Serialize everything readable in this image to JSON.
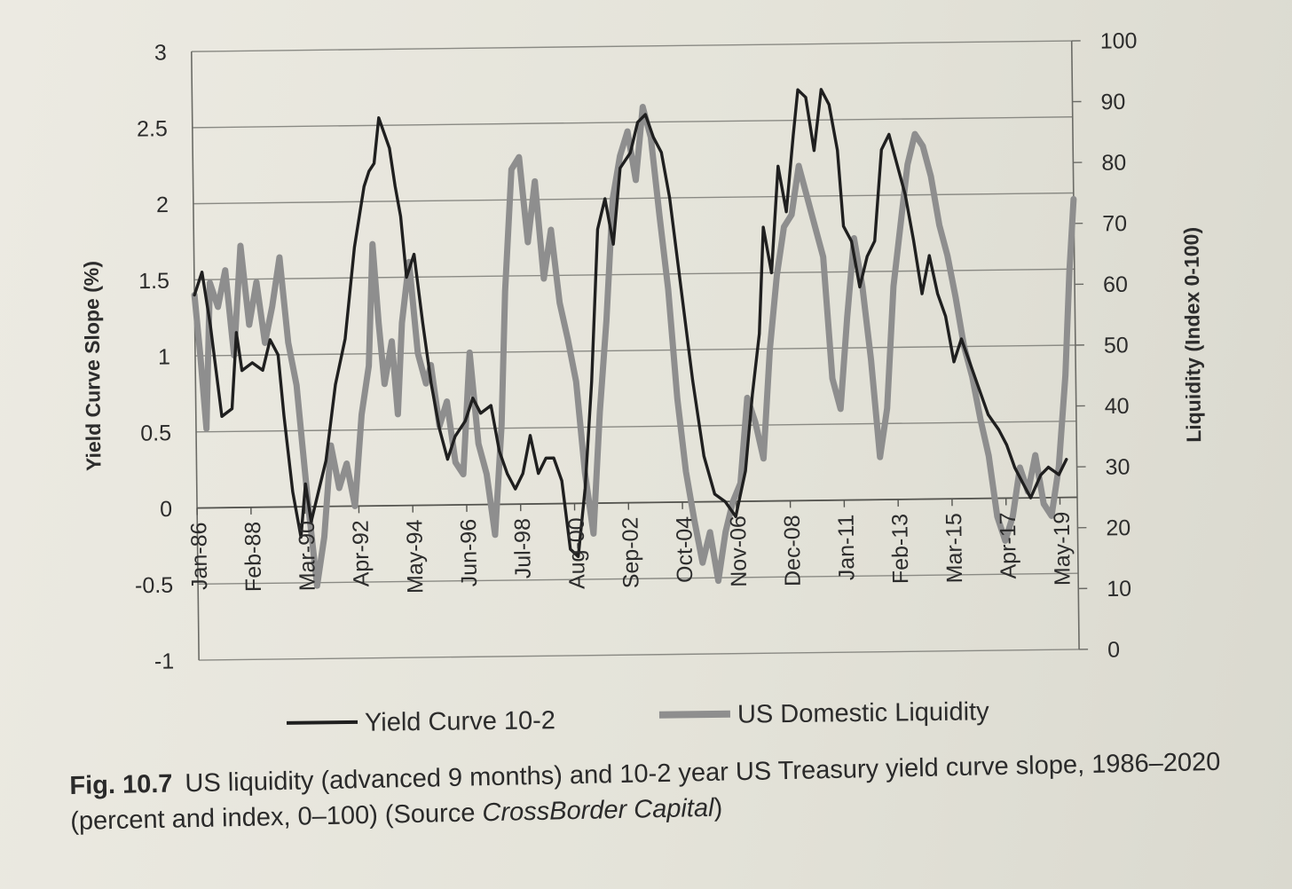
{
  "chart_data": {
    "type": "line",
    "y_left": {
      "label": "Yield Curve Slope (%)",
      "range": [
        -1,
        3
      ],
      "ticks": [
        "3",
        "2.5",
        "2",
        "1.5",
        "1",
        "0.5",
        "0",
        "-0.5",
        "-1"
      ]
    },
    "y_right": {
      "label": "Liquidity (Index 0-100)",
      "range": [
        0,
        100
      ],
      "ticks": [
        "100",
        "90",
        "80",
        "70",
        "60",
        "50",
        "40",
        "30",
        "20",
        "10",
        "0"
      ]
    },
    "x_ticks": [
      "Jan-86",
      "Feb-88",
      "Mar-90",
      "Apr-92",
      "May-94",
      "Jun-96",
      "Jul-98",
      "Aug-00",
      "Sep-02",
      "Oct-04",
      "Nov-06",
      "Dec-08",
      "Jan-11",
      "Feb-13",
      "Mar-15",
      "Apr-17",
      "May-19"
    ],
    "x_range": [
      1986.0,
      2020.0
    ],
    "grid": true,
    "legend_position": "bottom",
    "series": [
      {
        "name": "Yield Curve 10-2",
        "axis": "left",
        "color": "#1f1f1f",
        "points": [
          [
            1986.0,
            1.4
          ],
          [
            1986.3,
            1.55
          ],
          [
            1986.6,
            1.2
          ],
          [
            1987.0,
            0.6
          ],
          [
            1987.4,
            0.65
          ],
          [
            1987.6,
            1.15
          ],
          [
            1987.8,
            0.9
          ],
          [
            1988.2,
            0.95
          ],
          [
            1988.6,
            0.9
          ],
          [
            1988.9,
            1.1
          ],
          [
            1989.2,
            1.0
          ],
          [
            1989.4,
            0.6
          ],
          [
            1989.7,
            0.1
          ],
          [
            1990.0,
            -0.2
          ],
          [
            1990.2,
            0.15
          ],
          [
            1990.4,
            -0.1
          ],
          [
            1990.7,
            0.1
          ],
          [
            1991.0,
            0.3
          ],
          [
            1991.4,
            0.8
          ],
          [
            1991.8,
            1.1
          ],
          [
            1992.2,
            1.7
          ],
          [
            1992.6,
            2.1
          ],
          [
            1992.8,
            2.2
          ],
          [
            1993.0,
            2.25
          ],
          [
            1993.2,
            2.55
          ],
          [
            1993.6,
            2.35
          ],
          [
            1993.8,
            2.1
          ],
          [
            1994.0,
            1.9
          ],
          [
            1994.2,
            1.5
          ],
          [
            1994.5,
            1.65
          ],
          [
            1994.8,
            1.2
          ],
          [
            1995.1,
            0.8
          ],
          [
            1995.4,
            0.5
          ],
          [
            1995.7,
            0.3
          ],
          [
            1996.0,
            0.45
          ],
          [
            1996.4,
            0.55
          ],
          [
            1996.7,
            0.7
          ],
          [
            1997.0,
            0.6
          ],
          [
            1997.4,
            0.65
          ],
          [
            1997.7,
            0.35
          ],
          [
            1998.0,
            0.2
          ],
          [
            1998.3,
            0.1
          ],
          [
            1998.6,
            0.2
          ],
          [
            1998.9,
            0.45
          ],
          [
            1999.2,
            0.2
          ],
          [
            1999.5,
            0.3
          ],
          [
            1999.8,
            0.3
          ],
          [
            2000.1,
            0.15
          ],
          [
            2000.4,
            -0.3
          ],
          [
            2000.7,
            -0.35
          ],
          [
            2001.0,
            0.1
          ],
          [
            2001.3,
            0.8
          ],
          [
            2001.6,
            1.8
          ],
          [
            2001.9,
            2.0
          ],
          [
            2002.2,
            1.7
          ],
          [
            2002.5,
            2.2
          ],
          [
            2002.9,
            2.3
          ],
          [
            2003.2,
            2.5
          ],
          [
            2003.5,
            2.55
          ],
          [
            2003.8,
            2.4
          ],
          [
            2004.1,
            2.3
          ],
          [
            2004.4,
            2.0
          ],
          [
            2004.8,
            1.4
          ],
          [
            2005.2,
            0.8
          ],
          [
            2005.6,
            0.3
          ],
          [
            2006.0,
            0.05
          ],
          [
            2006.4,
            0.0
          ],
          [
            2006.8,
            -0.1
          ],
          [
            2007.2,
            0.2
          ],
          [
            2007.5,
            0.7
          ],
          [
            2007.8,
            1.1
          ],
          [
            2008.0,
            1.8
          ],
          [
            2008.3,
            1.5
          ],
          [
            2008.6,
            2.2
          ],
          [
            2008.9,
            1.9
          ],
          [
            2009.2,
            2.4
          ],
          [
            2009.4,
            2.7
          ],
          [
            2009.7,
            2.65
          ],
          [
            2010.0,
            2.3
          ],
          [
            2010.3,
            2.7
          ],
          [
            2010.6,
            2.6
          ],
          [
            2010.9,
            2.3
          ],
          [
            2011.1,
            1.8
          ],
          [
            2011.4,
            1.7
          ],
          [
            2011.7,
            1.4
          ],
          [
            2012.0,
            1.6
          ],
          [
            2012.3,
            1.7
          ],
          [
            2012.6,
            2.3
          ],
          [
            2012.9,
            2.4
          ],
          [
            2013.2,
            2.2
          ],
          [
            2013.5,
            2.0
          ],
          [
            2013.8,
            1.7
          ],
          [
            2014.1,
            1.35
          ],
          [
            2014.4,
            1.6
          ],
          [
            2014.7,
            1.35
          ],
          [
            2015.0,
            1.2
          ],
          [
            2015.3,
            0.9
          ],
          [
            2015.6,
            1.05
          ],
          [
            2015.9,
            0.9
          ],
          [
            2016.2,
            0.75
          ],
          [
            2016.6,
            0.55
          ],
          [
            2017.0,
            0.45
          ],
          [
            2017.3,
            0.35
          ],
          [
            2017.6,
            0.2
          ],
          [
            2017.9,
            0.1
          ],
          [
            2018.2,
            0.0
          ],
          [
            2018.6,
            0.15
          ],
          [
            2018.9,
            0.2
          ],
          [
            2019.3,
            0.15
          ],
          [
            2019.6,
            0.25
          ]
        ]
      },
      {
        "name": "US Domestic Liquidity",
        "axis": "right",
        "color": "#8e8e8e",
        "points": [
          [
            1986.0,
            60
          ],
          [
            1986.2,
            50
          ],
          [
            1986.4,
            38
          ],
          [
            1986.6,
            62
          ],
          [
            1986.9,
            58
          ],
          [
            1987.2,
            64
          ],
          [
            1987.5,
            50
          ],
          [
            1987.8,
            68
          ],
          [
            1988.1,
            55
          ],
          [
            1988.4,
            62
          ],
          [
            1988.7,
            52
          ],
          [
            1989.0,
            58
          ],
          [
            1989.3,
            66
          ],
          [
            1989.6,
            52
          ],
          [
            1989.9,
            45
          ],
          [
            1990.1,
            35
          ],
          [
            1990.3,
            25
          ],
          [
            1990.6,
            12
          ],
          [
            1990.9,
            20
          ],
          [
            1991.2,
            35
          ],
          [
            1991.5,
            28
          ],
          [
            1991.8,
            32
          ],
          [
            1992.1,
            25
          ],
          [
            1992.4,
            40
          ],
          [
            1992.7,
            48
          ],
          [
            1992.9,
            68
          ],
          [
            1993.1,
            55
          ],
          [
            1993.3,
            45
          ],
          [
            1993.6,
            52
          ],
          [
            1993.8,
            40
          ],
          [
            1994.0,
            55
          ],
          [
            1994.3,
            65
          ],
          [
            1994.6,
            50
          ],
          [
            1994.9,
            45
          ],
          [
            1995.1,
            48
          ],
          [
            1995.4,
            38
          ],
          [
            1995.7,
            42
          ],
          [
            1996.0,
            32
          ],
          [
            1996.3,
            30
          ],
          [
            1996.6,
            50
          ],
          [
            1996.9,
            35
          ],
          [
            1997.2,
            30
          ],
          [
            1997.5,
            20
          ],
          [
            1997.8,
            38
          ],
          [
            1998.0,
            60
          ],
          [
            1998.3,
            80
          ],
          [
            1998.6,
            82
          ],
          [
            1998.9,
            68
          ],
          [
            1999.2,
            78
          ],
          [
            1999.5,
            62
          ],
          [
            1999.8,
            70
          ],
          [
            2000.1,
            58
          ],
          [
            2000.4,
            52
          ],
          [
            2000.7,
            45
          ],
          [
            2001.0,
            30
          ],
          [
            2001.3,
            20
          ],
          [
            2001.6,
            40
          ],
          [
            2001.9,
            55
          ],
          [
            2002.2,
            75
          ],
          [
            2002.5,
            82
          ],
          [
            2002.8,
            86
          ],
          [
            2003.1,
            78
          ],
          [
            2003.4,
            90
          ],
          [
            2003.7,
            85
          ],
          [
            2004.0,
            72
          ],
          [
            2004.3,
            60
          ],
          [
            2004.6,
            42
          ],
          [
            2004.9,
            30
          ],
          [
            2005.2,
            22
          ],
          [
            2005.5,
            15
          ],
          [
            2005.8,
            20
          ],
          [
            2006.1,
            12
          ],
          [
            2006.4,
            20
          ],
          [
            2006.7,
            25
          ],
          [
            2007.0,
            28
          ],
          [
            2007.3,
            42
          ],
          [
            2007.6,
            38
          ],
          [
            2007.9,
            32
          ],
          [
            2008.2,
            50
          ],
          [
            2008.5,
            62
          ],
          [
            2008.8,
            70
          ],
          [
            2009.1,
            72
          ],
          [
            2009.4,
            80
          ],
          [
            2009.7,
            75
          ],
          [
            2010.0,
            70
          ],
          [
            2010.3,
            65
          ],
          [
            2010.6,
            45
          ],
          [
            2010.9,
            40
          ],
          [
            2011.2,
            55
          ],
          [
            2011.5,
            68
          ],
          [
            2011.8,
            60
          ],
          [
            2012.1,
            48
          ],
          [
            2012.4,
            32
          ],
          [
            2012.7,
            40
          ],
          [
            2013.0,
            60
          ],
          [
            2013.3,
            70
          ],
          [
            2013.6,
            80
          ],
          [
            2013.9,
            85
          ],
          [
            2014.2,
            83
          ],
          [
            2014.5,
            78
          ],
          [
            2014.8,
            70
          ],
          [
            2015.1,
            65
          ],
          [
            2015.4,
            58
          ],
          [
            2015.7,
            50
          ],
          [
            2016.0,
            45
          ],
          [
            2016.3,
            38
          ],
          [
            2016.6,
            32
          ],
          [
            2016.9,
            22
          ],
          [
            2017.2,
            18
          ],
          [
            2017.5,
            22
          ],
          [
            2017.8,
            30
          ],
          [
            2018.1,
            26
          ],
          [
            2018.4,
            32
          ],
          [
            2018.7,
            24
          ],
          [
            2019.0,
            22
          ],
          [
            2019.3,
            30
          ],
          [
            2019.6,
            45
          ],
          [
            2019.8,
            62
          ],
          [
            2020.0,
            74
          ]
        ]
      }
    ]
  },
  "caption": {
    "fig_label": "Fig. 10.7",
    "text": "US liquidity (advanced 9 months) and 10-2 year US Treasury yield curve slope, 1986–2020 (percent and index, 0–100) (Source ",
    "source": "CrossBorder Capital",
    "close": ")"
  }
}
